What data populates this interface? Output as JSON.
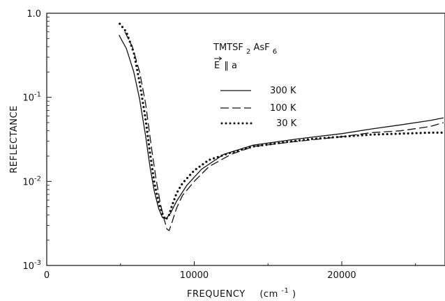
{
  "chart_data": {
    "type": "line",
    "xlabel": "FREQUENCY",
    "xlabel_unit_prefix": "(cm",
    "xlabel_unit_exp": "-1",
    "xlabel_unit_suffix": ")",
    "ylabel": "REFLECTANCE",
    "xlim": [
      0,
      27000
    ],
    "ylim": [
      0.001,
      1.0
    ],
    "yscale": "log",
    "grid": false,
    "x_ticks": [
      0,
      10000,
      20000
    ],
    "x_tick_labels": [
      "0",
      "10000",
      "20000"
    ],
    "y_ticks": [
      1.0,
      0.1,
      0.01,
      0.001
    ],
    "y_tick_labels": [
      {
        "base": "1.0",
        "exp": ""
      },
      {
        "base": "10",
        "exp": "-1"
      },
      {
        "base": "10",
        "exp": "-2"
      },
      {
        "base": "10",
        "exp": "-3"
      }
    ],
    "legend": {
      "placement": "top-right",
      "compound_a": "TMTSF",
      "compound_sub": "2",
      "compound_b": " AsF",
      "compound_sub2": "6",
      "field_label": "E",
      "field_rel": "‖ a"
    },
    "series": [
      {
        "name": "300 K",
        "style": "solid",
        "x": [
          4900,
          5400,
          5900,
          6300,
          6700,
          7000,
          7300,
          7600,
          7850,
          8100,
          8400,
          8800,
          9500,
          10500,
          12000,
          14000,
          17000,
          20000,
          22000,
          24000,
          26000,
          26900
        ],
        "values": [
          0.55,
          0.38,
          0.2,
          0.095,
          0.035,
          0.015,
          0.0075,
          0.0047,
          0.0037,
          0.0036,
          0.0042,
          0.0058,
          0.009,
          0.014,
          0.021,
          0.027,
          0.032,
          0.037,
          0.042,
          0.047,
          0.053,
          0.057
        ]
      },
      {
        "name": "100 K",
        "style": "dashed",
        "x": [
          5300,
          5800,
          6300,
          6700,
          7100,
          7400,
          7700,
          7950,
          8150,
          8300,
          8500,
          8800,
          9200,
          10000,
          11000,
          12500,
          14000,
          17000,
          20000,
          22000,
          24000,
          26000,
          26900
        ],
        "values": [
          0.6,
          0.4,
          0.2,
          0.085,
          0.025,
          0.011,
          0.0055,
          0.0036,
          0.0027,
          0.0026,
          0.0033,
          0.0048,
          0.0068,
          0.01,
          0.015,
          0.021,
          0.026,
          0.03,
          0.034,
          0.038,
          0.04,
          0.045,
          0.05
        ]
      },
      {
        "name": "30 K",
        "style": "dotted",
        "x": [
          4950,
          5400,
          5900,
          6300,
          6700,
          7000,
          7300,
          7600,
          7850,
          8050,
          8250,
          8500,
          8800,
          9200,
          10000,
          11000,
          12500,
          14000,
          16000,
          18000,
          20000,
          22000,
          24000,
          26000,
          26900
        ],
        "values": [
          0.75,
          0.6,
          0.34,
          0.15,
          0.055,
          0.022,
          0.0095,
          0.0055,
          0.0041,
          0.0035,
          0.0038,
          0.0052,
          0.0072,
          0.0095,
          0.0135,
          0.018,
          0.022,
          0.026,
          0.029,
          0.032,
          0.034,
          0.036,
          0.037,
          0.038,
          0.038
        ]
      }
    ]
  }
}
